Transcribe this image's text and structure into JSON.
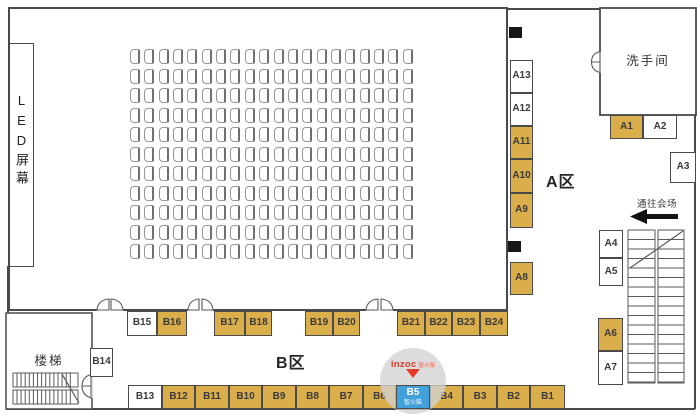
{
  "plan_labels": {
    "led_screen": "LED屏幕",
    "restroom": "洗手间",
    "stairs": "楼梯",
    "zone_a": "A区",
    "zone_b": "B区",
    "to_venue": "通往会场"
  },
  "seat_grid": {
    "rows": 11,
    "cols": 20
  },
  "booths": {
    "a_column": [
      {
        "label": "A13",
        "fill": "white"
      },
      {
        "label": "A12",
        "fill": "white"
      },
      {
        "label": "A11",
        "fill": "gold"
      },
      {
        "label": "A10",
        "fill": "gold"
      },
      {
        "label": "A9",
        "fill": "gold"
      },
      {
        "label": "A8",
        "fill": "gold"
      }
    ],
    "right_side": [
      {
        "label": "A1",
        "fill": "gold"
      },
      {
        "label": "A2",
        "fill": "white"
      },
      {
        "label": "A3",
        "fill": "white"
      },
      {
        "label": "A4",
        "fill": "white"
      },
      {
        "label": "A5",
        "fill": "white"
      },
      {
        "label": "A6",
        "fill": "gold"
      },
      {
        "label": "A7",
        "fill": "white"
      }
    ],
    "b_top": [
      {
        "label": "B15",
        "fill": "white"
      },
      {
        "label": "B16",
        "fill": "gold"
      },
      {
        "label": "B17",
        "fill": "gold"
      },
      {
        "label": "B18",
        "fill": "gold"
      },
      {
        "label": "B19",
        "fill": "gold"
      },
      {
        "label": "B20",
        "fill": "gold"
      },
      {
        "label": "B21",
        "fill": "gold"
      },
      {
        "label": "B22",
        "fill": "gold"
      },
      {
        "label": "B23",
        "fill": "gold"
      },
      {
        "label": "B24",
        "fill": "gold"
      }
    ],
    "b_bottom": [
      {
        "label": "B13",
        "fill": "white"
      },
      {
        "label": "B12",
        "fill": "gold"
      },
      {
        "label": "B11",
        "fill": "gold"
      },
      {
        "label": "B10",
        "fill": "gold"
      },
      {
        "label": "B9",
        "fill": "gold"
      },
      {
        "label": "B8",
        "fill": "gold"
      },
      {
        "label": "B7",
        "fill": "gold"
      },
      {
        "label": "B6",
        "fill": "gold"
      },
      {
        "label": "B5",
        "fill": "blue",
        "sub": "智火柴"
      },
      {
        "label": "B4",
        "fill": "gold"
      },
      {
        "label": "B3",
        "fill": "gold"
      },
      {
        "label": "B2",
        "fill": "gold"
      },
      {
        "label": "B1",
        "fill": "gold"
      }
    ],
    "b14": {
      "label": "B14",
      "fill": "white"
    }
  },
  "callout": {
    "brand": "inzoc",
    "brand_cn": "智火柴",
    "target_booth": "B5"
  },
  "colors": {
    "booth_gold": "#DBAE4C",
    "booth_highlight_blue": "#42A0DB",
    "logo_red": "#E5392B",
    "wall": "#4A4A4A"
  }
}
